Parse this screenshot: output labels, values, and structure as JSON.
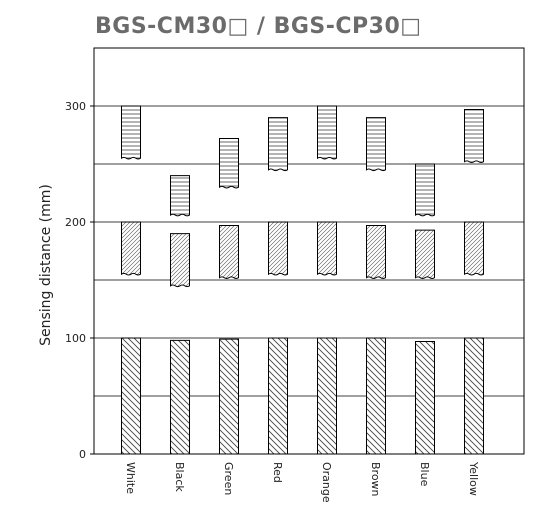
{
  "chart_data": {
    "type": "bar",
    "title": "BGS-CM30□ / BGS-CP30□",
    "ylabel": "Sensing distance (mm)",
    "xlabel": "",
    "ylim": [
      0,
      350
    ],
    "yticks": [
      0,
      100,
      200,
      300
    ],
    "grid_lines": [
      50,
      100,
      150,
      200,
      250,
      300
    ],
    "categories": [
      "White",
      "Black",
      "Green",
      "Red",
      "Orange",
      "Brown",
      "Blue",
      "Yellow"
    ],
    "series": [
      {
        "name": "",
        "pattern": "diagonal-dense",
        "ranges": [
          [
            0,
            100
          ],
          [
            0,
            98
          ],
          [
            0,
            99
          ],
          [
            0,
            100
          ],
          [
            0,
            100
          ],
          [
            0,
            100
          ],
          [
            0,
            97
          ],
          [
            0,
            100
          ]
        ]
      },
      {
        "name": "",
        "pattern": "diagonal-fine",
        "ranges": [
          [
            155,
            200
          ],
          [
            145,
            190
          ],
          [
            152,
            197
          ],
          [
            155,
            200
          ],
          [
            155,
            200
          ],
          [
            152,
            197
          ],
          [
            152,
            193
          ],
          [
            155,
            200
          ]
        ]
      },
      {
        "name": "",
        "pattern": "horizontal",
        "ranges": [
          [
            255,
            300
          ],
          [
            206,
            240
          ],
          [
            230,
            272
          ],
          [
            245,
            290
          ],
          [
            255,
            300
          ],
          [
            245,
            290
          ],
          [
            206,
            250
          ],
          [
            252,
            297
          ]
        ]
      }
    ]
  }
}
